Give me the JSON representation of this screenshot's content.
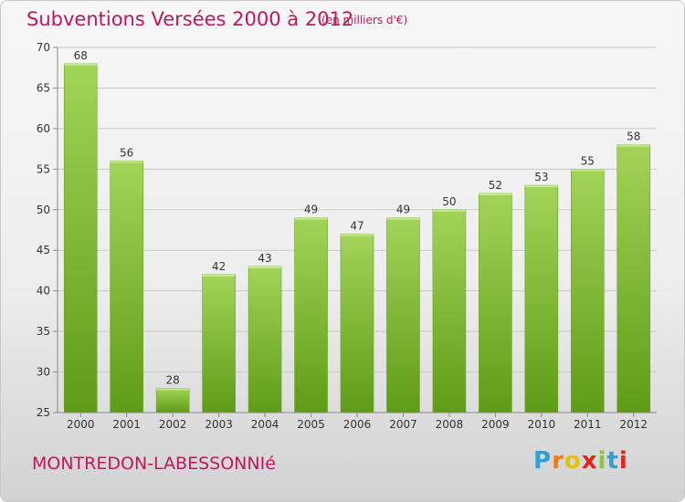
{
  "header": {
    "title": "Subventions Versées 2000 à 2012",
    "subtitle": "(en milliers d'€)"
  },
  "footer": {
    "commune": "MONTREDON-LABESSONNIé",
    "logo": {
      "text": "Proxiti",
      "letters": [
        "P",
        "r",
        "o",
        "x",
        "i",
        "t",
        "i"
      ],
      "colors": [
        "#2e9fd9",
        "#f07a1a",
        "#e5c200",
        "#e0251b",
        "#8bc53f",
        "#2e9fd9",
        "#e0251b"
      ]
    }
  },
  "colors": {
    "accent": "#c0185c",
    "bar_light": "#a2d45a",
    "bar_dark": "#5f9c16",
    "grid": "#c8c8c8",
    "axis_text": "#333333"
  },
  "chart_data": {
    "type": "bar",
    "categories": [
      "2000",
      "2001",
      "2002",
      "2003",
      "2004",
      "2005",
      "2006",
      "2007",
      "2008",
      "2009",
      "2010",
      "2011",
      "2012"
    ],
    "values": [
      68,
      56,
      28,
      42,
      43,
      49,
      47,
      49,
      50,
      52,
      53,
      55,
      58
    ],
    "data_labels": [
      "68",
      "56",
      "28",
      "42",
      "43",
      "49",
      "47",
      "49",
      "50",
      "52",
      "53",
      "55",
      "58"
    ],
    "ylim": [
      25,
      70
    ],
    "yticks": [
      25,
      30,
      35,
      40,
      45,
      50,
      55,
      60,
      65,
      70
    ],
    "ytick_labels": [
      "25",
      "30",
      "35",
      "40",
      "45",
      "50",
      "55",
      "60",
      "65",
      "70"
    ],
    "grid": true
  }
}
